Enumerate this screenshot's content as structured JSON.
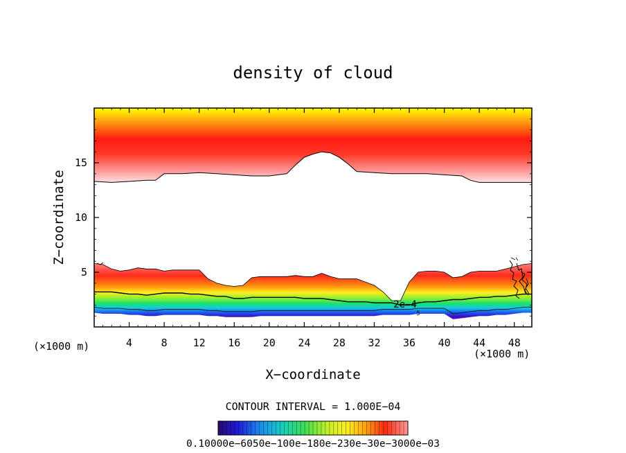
{
  "chart_data": {
    "type": "heatmap",
    "title": "density of cloud",
    "xlabel": "X−coordinate",
    "ylabel": "Z−coordinate",
    "x_unit_left": "(×1000 m)",
    "x_unit_right": "(×1000 m)",
    "xlim": [
      0,
      50
    ],
    "ylim": [
      0,
      20
    ],
    "x_ticks": [
      4,
      8,
      12,
      16,
      20,
      24,
      28,
      32,
      36,
      40,
      44,
      48
    ],
    "y_ticks": [
      5,
      10,
      15
    ],
    "contour_interval_text": "CONTOUR INTERVAL = 1.000E−04",
    "colorbar_labels_text": "0.10000e−6050e−100e−180e−230e−30e−3000e−03",
    "contour_label": "2e−4",
    "contour_label_small": "5",
    "upper_cloud": {
      "base_x": [
        0,
        2,
        4,
        6,
        7,
        8,
        10,
        12,
        14,
        16,
        18,
        20,
        21,
        22,
        23,
        24,
        25,
        26,
        27,
        28,
        29,
        30,
        32,
        34,
        36,
        38,
        40,
        42,
        43,
        44,
        46,
        48,
        50
      ],
      "base_z": [
        13.3,
        13.2,
        13.3,
        13.4,
        13.4,
        14.0,
        14.0,
        14.1,
        14.0,
        13.9,
        13.8,
        13.8,
        13.9,
        14.0,
        14.8,
        15.5,
        15.8,
        16.0,
        15.9,
        15.5,
        14.9,
        14.2,
        14.1,
        14.0,
        14.0,
        14.0,
        13.9,
        13.8,
        13.4,
        13.2,
        13.2,
        13.2,
        13.2
      ],
      "top_z": 20
    },
    "lower_cloud": {
      "x": [
        0,
        1,
        2,
        3,
        4,
        5,
        6,
        7,
        8,
        9,
        10,
        11,
        12,
        13,
        14,
        15,
        16,
        17,
        18,
        19,
        20,
        21,
        22,
        23,
        24,
        25,
        26,
        27,
        28,
        29,
        30,
        31,
        32,
        33,
        34,
        35,
        36,
        37,
        38,
        39,
        40,
        41,
        42,
        43,
        44,
        45,
        46,
        47,
        48,
        49,
        50
      ],
      "top_z": [
        5.8,
        5.7,
        5.3,
        5.1,
        5.2,
        5.4,
        5.3,
        5.3,
        5.1,
        5.2,
        5.2,
        5.2,
        5.2,
        4.4,
        4.0,
        3.8,
        3.7,
        3.8,
        4.5,
        4.6,
        4.6,
        4.6,
        4.6,
        4.7,
        4.6,
        4.6,
        4.9,
        4.6,
        4.4,
        4.4,
        4.4,
        4.1,
        3.8,
        3.2,
        2.4,
        2.4,
        4.1,
        5.0,
        5.1,
        5.1,
        5.0,
        4.5,
        4.6,
        5.0,
        5.1,
        5.1,
        5.1,
        5.3,
        5.5,
        5.7,
        5.8
      ],
      "mid_z": [
        3.2,
        3.2,
        3.2,
        3.1,
        3.0,
        3.0,
        2.9,
        3.0,
        3.1,
        3.1,
        3.1,
        3.0,
        3.0,
        2.9,
        2.8,
        2.8,
        2.6,
        2.6,
        2.7,
        2.7,
        2.7,
        2.7,
        2.7,
        2.7,
        2.6,
        2.6,
        2.6,
        2.5,
        2.4,
        2.3,
        2.3,
        2.3,
        2.2,
        2.2,
        2.2,
        2.0,
        2.0,
        2.2,
        2.3,
        2.3,
        2.4,
        2.5,
        2.5,
        2.6,
        2.7,
        2.7,
        2.8,
        2.8,
        2.9,
        3.0,
        3.0
      ],
      "bottom_z": [
        1.3,
        1.2,
        1.2,
        1.2,
        1.1,
        1.1,
        1.0,
        1.0,
        1.1,
        1.1,
        1.1,
        1.1,
        1.1,
        1.0,
        1.0,
        0.9,
        0.9,
        0.9,
        0.9,
        1.0,
        1.0,
        1.0,
        1.0,
        1.0,
        1.0,
        1.0,
        1.0,
        1.0,
        1.0,
        1.0,
        1.0,
        1.0,
        1.0,
        1.1,
        1.1,
        1.1,
        1.1,
        1.2,
        1.2,
        1.2,
        1.2,
        0.7,
        0.8,
        0.9,
        1.0,
        1.0,
        1.1,
        1.1,
        1.2,
        1.3,
        1.3
      ]
    },
    "colormap": [
      "#2a0a6e",
      "#1c1ad8",
      "#1a6cf0",
      "#16c8e0",
      "#18e070",
      "#6ef032",
      "#c8f028",
      "#ffee20",
      "#ffb010",
      "#ff6010",
      "#ff1a10",
      "#ff6f6f",
      "#ffd0d0"
    ]
  }
}
